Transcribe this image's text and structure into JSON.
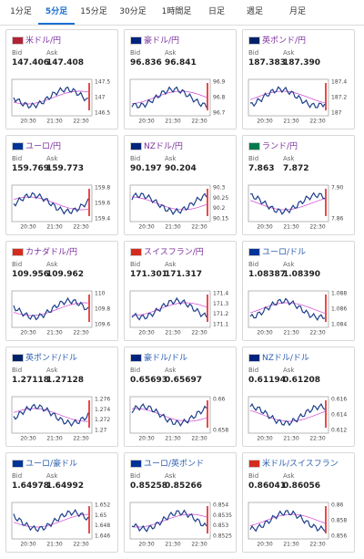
{
  "tabs": [
    {
      "label": "1分足"
    },
    {
      "label": "5分足",
      "active": true
    },
    {
      "label": "15分足"
    },
    {
      "label": "30分足"
    },
    {
      "label": "1時間足"
    },
    {
      "label": "日足"
    },
    {
      "label": "週足"
    },
    {
      "label": "月足"
    }
  ],
  "bid_label": "Bid",
  "ask_label": "Ask",
  "x_labels": [
    "20:30",
    "21:30",
    "22:30"
  ],
  "cards": [
    {
      "title": "米ドル/円",
      "color": "#7b2f9e",
      "bid": "147.406",
      "ask": "147.408",
      "yticks": [
        "147.5",
        "147",
        "146.5"
      ]
    },
    {
      "title": "豪ドル/円",
      "color": "#7b2f9e",
      "bid": "96.836",
      "ask": "96.841",
      "yticks": [
        "96.9",
        "96.8",
        "96.7"
      ]
    },
    {
      "title": "英ポンド/円",
      "color": "#7b2f9e",
      "bid": "187.383",
      "ask": "187.390",
      "yticks": [
        "187.4",
        "187.2",
        "187"
      ]
    },
    {
      "title": "ユーロ/円",
      "color": "#7b2f9e",
      "bid": "159.769",
      "ask": "159.773",
      "yticks": [
        "159.8",
        "159.6",
        "159.4"
      ]
    },
    {
      "title": "NZドル/円",
      "color": "#7b2f9e",
      "bid": "90.197",
      "ask": "90.204",
      "yticks": [
        "90.3",
        "90.25",
        "90.2",
        "90.15"
      ]
    },
    {
      "title": "ランド/円",
      "color": "#7b2f9e",
      "bid": "7.863",
      "ask": "7.872",
      "yticks": [
        "7.90",
        "7.86"
      ]
    },
    {
      "title": "カナダドル/円",
      "color": "#7b2f9e",
      "bid": "109.956",
      "ask": "109.962",
      "yticks": [
        "110",
        "109.8",
        "109.6"
      ]
    },
    {
      "title": "スイスフラン/円",
      "color": "#7b2f9e",
      "bid": "171.301",
      "ask": "171.317",
      "yticks": [
        "171.4",
        "171.3",
        "171.2",
        "171.1"
      ]
    },
    {
      "title": "ユーロ/ドル",
      "color": "#2a5db0",
      "bid": "1.08387",
      "ask": "1.08390",
      "yticks": [
        "1.088",
        "1.086",
        "1.084"
      ]
    },
    {
      "title": "英ポンド/ドル",
      "color": "#2a5db0",
      "bid": "1.27118",
      "ask": "1.27128",
      "yticks": [
        "1.276",
        "1.274",
        "1.272",
        "1.27"
      ]
    },
    {
      "title": "豪ドル/ドル",
      "color": "#2a5db0",
      "bid": "0.65693",
      "ask": "0.65697",
      "yticks": [
        "0.66",
        "0.658"
      ]
    },
    {
      "title": "NZドル/ドル",
      "color": "#2a5db0",
      "bid": "0.61194",
      "ask": "0.61208",
      "yticks": [
        "0.616",
        "0.614",
        "0.612"
      ]
    },
    {
      "title": "ユーロ/豪ドル",
      "color": "#2a5db0",
      "bid": "1.64978",
      "ask": "1.64992",
      "yticks": [
        "1.652",
        "1.65",
        "1.648",
        "1.646"
      ]
    },
    {
      "title": "ユーロ/英ポンド",
      "color": "#2a5db0",
      "bid": "0.85258",
      "ask": "0.85266",
      "yticks": [
        "0.854",
        "0.8535",
        "0.853",
        "0.8525"
      ]
    },
    {
      "title": "米ドル/スイスフラン",
      "color": "#2a5db0",
      "bid": "0.86041",
      "ask": "0.86056",
      "yticks": [
        "0.86",
        "0.858",
        "0.856"
      ]
    }
  ]
}
